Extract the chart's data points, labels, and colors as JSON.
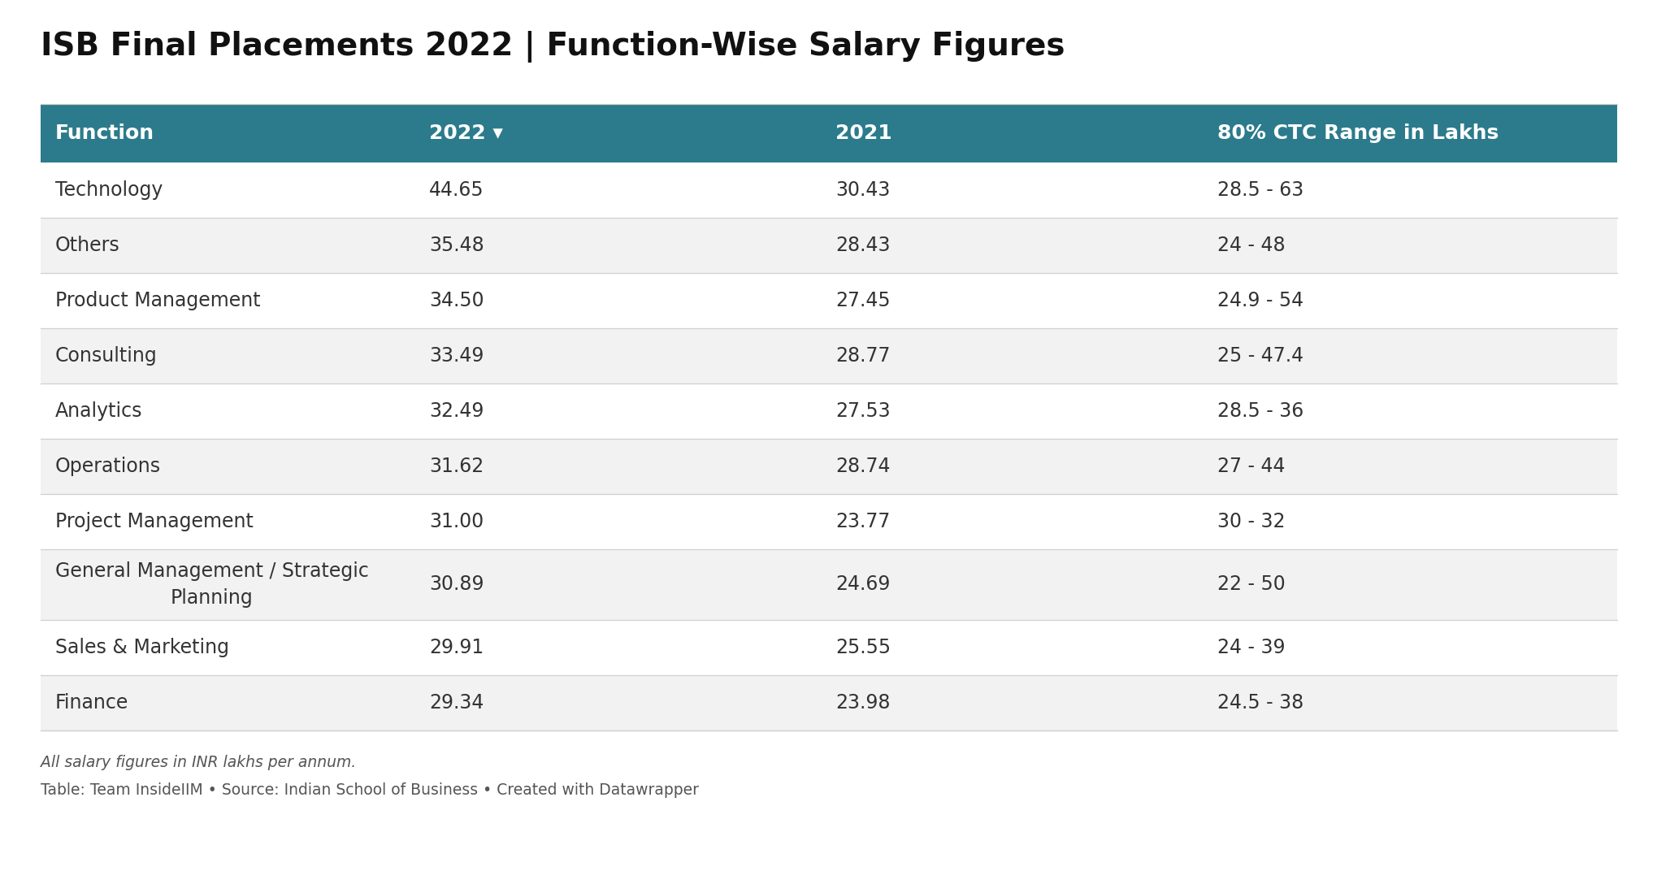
{
  "title": "ISB Final Placements 2022 | Function-Wise Salary Figures",
  "header": [
    "Function",
    "2022 ▾",
    "2021",
    "80% CTC Range in Lakhs"
  ],
  "rows": [
    [
      "Technology",
      "44.65",
      "30.43",
      "28.5 - 63"
    ],
    [
      "Others",
      "35.48",
      "28.43",
      "24 - 48"
    ],
    [
      "Product Management",
      "34.50",
      "27.45",
      "24.9 - 54"
    ],
    [
      "Consulting",
      "33.49",
      "28.77",
      "25 - 47.4"
    ],
    [
      "Analytics",
      "32.49",
      "27.53",
      "28.5 - 36"
    ],
    [
      "Operations",
      "31.62",
      "28.74",
      "27 - 44"
    ],
    [
      "Project Management",
      "31.00",
      "23.77",
      "30 - 32"
    ],
    [
      "General Management / Strategic\nPlanning",
      "30.89",
      "24.69",
      "22 - 50"
    ],
    [
      "Sales & Marketing",
      "29.91",
      "25.55",
      "24 - 39"
    ],
    [
      "Finance",
      "29.34",
      "23.98",
      "24.5 - 38"
    ]
  ],
  "header_bg": "#2C7B8C",
  "header_text_color": "#ffffff",
  "row_bg_white": "#ffffff",
  "row_bg_gray": "#f2f2f2",
  "separator_color": "#d0d0d0",
  "title_color": "#111111",
  "cell_text_color": "#333333",
  "footnote1": "All salary figures in INR lakhs per annum.",
  "footnote2": "Table: Team InsideIIM • Source: Indian School of Business • Created with Datawrapper",
  "fig_width": 20.4,
  "fig_height": 10.72,
  "dpi": 100
}
